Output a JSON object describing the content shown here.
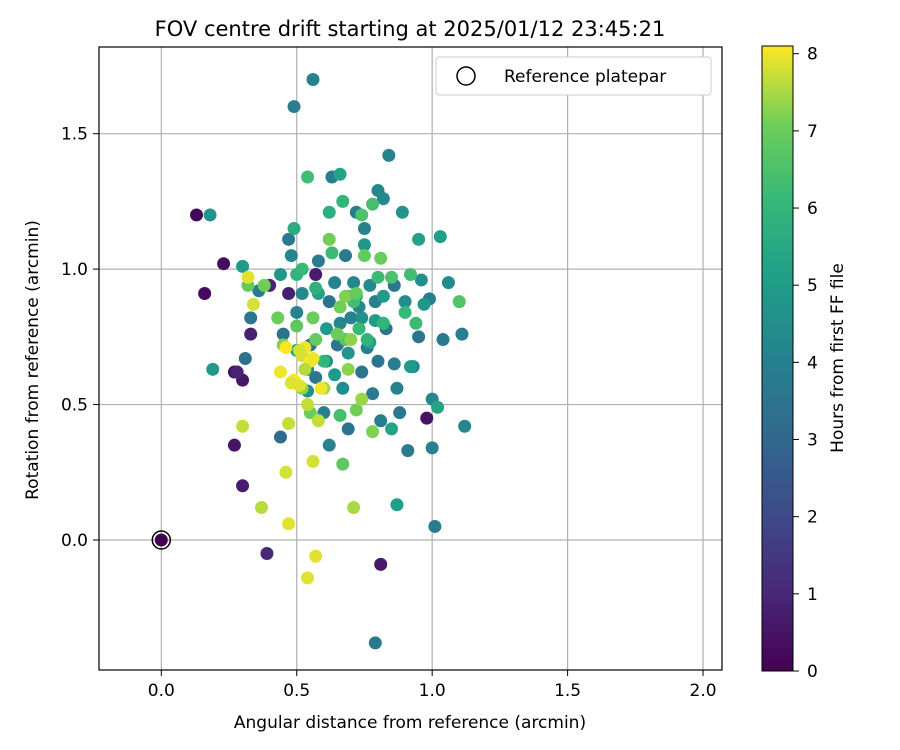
{
  "chart_data": {
    "type": "scatter",
    "title": "FOV centre drift starting at 2025/01/12 23:45:21",
    "xlabel": "Angular distance from reference (arcmin)",
    "ylabel": "Rotation from reference (arcmin)",
    "xlim": [
      -0.23,
      2.07
    ],
    "ylim": [
      -0.48,
      1.82
    ],
    "xticks": [
      0.0,
      0.5,
      1.0,
      1.5,
      2.0
    ],
    "xtick_labels": [
      "0.0",
      "0.5",
      "1.0",
      "1.5",
      "2.0"
    ],
    "yticks": [
      0.0,
      0.5,
      1.0,
      1.5
    ],
    "ytick_labels": [
      "0.0",
      "0.5",
      "1.0",
      "1.5"
    ],
    "grid": true,
    "colorbar": {
      "label": "Hours from first FF file",
      "min": 0,
      "max": 8.1,
      "ticks": [
        0,
        1,
        2,
        3,
        4,
        5,
        6,
        7,
        8
      ],
      "tick_labels": [
        "0",
        "1",
        "2",
        "3",
        "4",
        "5",
        "6",
        "7",
        "8"
      ],
      "colormap": "viridis"
    },
    "legend": {
      "placement": "top-right",
      "entries": [
        {
          "label": "Reference platepar",
          "marker": "open-circle",
          "x": 0.0,
          "y": 0.0
        }
      ]
    },
    "points": [
      [
        0.0,
        0.0,
        0.0
      ],
      [
        0.13,
        1.2,
        0.1
      ],
      [
        0.16,
        0.91,
        0.2
      ],
      [
        0.23,
        1.02,
        0.3
      ],
      [
        0.27,
        0.62,
        0.4
      ],
      [
        0.27,
        0.35,
        0.5
      ],
      [
        0.3,
        0.59,
        0.6
      ],
      [
        0.3,
        0.2,
        0.7
      ],
      [
        0.33,
        0.76,
        0.8
      ],
      [
        0.4,
        0.94,
        0.9
      ],
      [
        0.39,
        -0.05,
        1.0
      ],
      [
        0.47,
        0.91,
        0.8
      ],
      [
        0.57,
        0.98,
        0.7
      ],
      [
        0.81,
        -0.09,
        0.6
      ],
      [
        0.98,
        0.45,
        0.5
      ],
      [
        0.28,
        0.62,
        0.9
      ],
      [
        0.31,
        0.67,
        3.4
      ],
      [
        0.33,
        0.82,
        3.6
      ],
      [
        0.36,
        0.92,
        3.8
      ],
      [
        0.44,
        0.38,
        3.2
      ],
      [
        0.45,
        0.76,
        3.5
      ],
      [
        0.47,
        1.11,
        3.7
      ],
      [
        0.48,
        1.05,
        4.2
      ],
      [
        0.49,
        1.6,
        3.9
      ],
      [
        0.5,
        0.84,
        4.0
      ],
      [
        0.52,
        0.91,
        4.3
      ],
      [
        0.55,
        0.72,
        3.4
      ],
      [
        0.56,
        1.7,
        4.1
      ],
      [
        0.57,
        0.6,
        3.6
      ],
      [
        0.58,
        1.03,
        3.8
      ],
      [
        0.6,
        0.47,
        4.0
      ],
      [
        0.61,
        0.66,
        4.4
      ],
      [
        0.62,
        0.88,
        3.5
      ],
      [
        0.63,
        1.34,
        3.9
      ],
      [
        0.64,
        0.95,
        4.1
      ],
      [
        0.65,
        0.72,
        3.6
      ],
      [
        0.66,
        0.8,
        4.2
      ],
      [
        0.68,
        1.05,
        3.7
      ],
      [
        0.69,
        0.41,
        3.5
      ],
      [
        0.7,
        0.82,
        4.0
      ],
      [
        0.72,
        1.21,
        3.8
      ],
      [
        0.73,
        0.86,
        4.3
      ],
      [
        0.74,
        0.62,
        3.6
      ],
      [
        0.75,
        1.15,
        4.1
      ],
      [
        0.76,
        0.71,
        3.9
      ],
      [
        0.77,
        0.94,
        4.4
      ],
      [
        0.78,
        0.54,
        3.7
      ],
      [
        0.79,
        0.88,
        4.0
      ],
      [
        0.8,
        0.66,
        3.5
      ],
      [
        0.8,
        1.29,
        4.2
      ],
      [
        0.81,
        0.44,
        3.8
      ],
      [
        0.82,
        1.26,
        4.3
      ],
      [
        0.83,
        0.78,
        3.6
      ],
      [
        0.84,
        1.42,
        4.0
      ],
      [
        0.86,
        0.65,
        3.9
      ],
      [
        0.87,
        0.56,
        4.1
      ],
      [
        0.88,
        0.47,
        3.7
      ],
      [
        0.9,
        0.88,
        4.4
      ],
      [
        0.91,
        0.33,
        3.8
      ],
      [
        0.93,
        0.64,
        4.2
      ],
      [
        0.95,
        0.75,
        3.6
      ],
      [
        0.96,
        0.96,
        4.5
      ],
      [
        0.99,
        0.89,
        3.9
      ],
      [
        1.0,
        0.52,
        4.3
      ],
      [
        1.0,
        0.34,
        4.1
      ],
      [
        1.01,
        0.05,
        3.8
      ],
      [
        1.04,
        0.74,
        3.7
      ],
      [
        1.06,
        0.95,
        4.4
      ],
      [
        1.11,
        0.76,
        3.9
      ],
      [
        1.12,
        0.42,
        4.2
      ],
      [
        0.79,
        -0.38,
        3.7
      ],
      [
        0.62,
        0.35,
        4.0
      ],
      [
        0.71,
        0.95,
        4.3
      ],
      [
        0.54,
        0.63,
        4.1
      ],
      [
        0.67,
        0.56,
        4.4
      ],
      [
        0.86,
        0.94,
        3.6
      ],
      [
        0.18,
        1.2,
        4.7
      ],
      [
        0.19,
        0.63,
        4.9
      ],
      [
        0.3,
        1.01,
        5.0
      ],
      [
        0.44,
        0.98,
        4.8
      ],
      [
        0.5,
        0.7,
        5.1
      ],
      [
        0.54,
        0.55,
        4.6
      ],
      [
        0.58,
        0.91,
        5.2
      ],
      [
        0.61,
        0.78,
        4.9
      ],
      [
        0.64,
        0.61,
        5.0
      ],
      [
        0.66,
        1.35,
        5.3
      ],
      [
        0.69,
        0.69,
        4.7
      ],
      [
        0.72,
        0.9,
        5.1
      ],
      [
        0.75,
        1.09,
        4.8
      ],
      [
        0.77,
        0.73,
        5.2
      ],
      [
        0.79,
        0.81,
        5.0
      ],
      [
        0.82,
        0.9,
        4.9
      ],
      [
        0.85,
        0.41,
        5.3
      ],
      [
        0.87,
        0.13,
        5.1
      ],
      [
        0.89,
        1.21,
        4.7
      ],
      [
        0.92,
        0.64,
        5.0
      ],
      [
        0.95,
        1.11,
        5.2
      ],
      [
        0.97,
        0.87,
        4.8
      ],
      [
        1.03,
        1.12,
        5.1
      ],
      [
        1.02,
        0.49,
        5.3
      ],
      [
        0.74,
        0.82,
        4.6
      ],
      [
        0.49,
        1.15,
        5.6
      ],
      [
        0.5,
        0.98,
        5.9
      ],
      [
        0.52,
        1.0,
        6.1
      ],
      [
        0.54,
        1.34,
        6.3
      ],
      [
        0.57,
        0.93,
        5.8
      ],
      [
        0.6,
        0.66,
        6.0
      ],
      [
        0.62,
        1.21,
        5.7
      ],
      [
        0.63,
        1.06,
        6.2
      ],
      [
        0.66,
        0.46,
        6.4
      ],
      [
        0.67,
        1.25,
        6.0
      ],
      [
        0.69,
        0.9,
        5.8
      ],
      [
        0.71,
        0.88,
        6.3
      ],
      [
        0.73,
        0.78,
        6.1
      ],
      [
        0.76,
        0.74,
        5.9
      ],
      [
        0.78,
        1.24,
        6.4
      ],
      [
        0.8,
        0.97,
        6.2
      ],
      [
        0.82,
        0.8,
        6.0
      ],
      [
        0.85,
        0.97,
        6.5
      ],
      [
        0.9,
        0.84,
        6.1
      ],
      [
        0.92,
        0.98,
        6.3
      ],
      [
        0.94,
        0.8,
        6.2
      ],
      [
        1.1,
        0.88,
        6.6
      ],
      [
        0.74,
        1.2,
        6.5
      ],
      [
        0.68,
        0.74,
        6.7
      ],
      [
        0.32,
        0.94,
        6.9
      ],
      [
        0.38,
        0.94,
        7.1
      ],
      [
        0.43,
        0.82,
        7.0
      ],
      [
        0.45,
        0.72,
        7.2
      ],
      [
        0.5,
        0.79,
        6.8
      ],
      [
        0.52,
        0.56,
        7.3
      ],
      [
        0.55,
        0.47,
        7.0
      ],
      [
        0.57,
        0.74,
        6.9
      ],
      [
        0.6,
        0.56,
        7.4
      ],
      [
        0.62,
        1.11,
        7.1
      ],
      [
        0.65,
        0.76,
        7.0
      ],
      [
        0.67,
        0.28,
        6.8
      ],
      [
        0.68,
        0.9,
        7.2
      ],
      [
        0.7,
        0.74,
        7.3
      ],
      [
        0.71,
        0.12,
        7.5
      ],
      [
        0.72,
        0.48,
        7.1
      ],
      [
        0.74,
        0.52,
        7.4
      ],
      [
        0.75,
        1.05,
        6.9
      ],
      [
        0.78,
        0.4,
        7.2
      ],
      [
        0.81,
        1.04,
        7.0
      ],
      [
        0.66,
        0.86,
        7.1
      ],
      [
        0.72,
        0.91,
        6.9
      ],
      [
        0.69,
        0.63,
        7.3
      ],
      [
        0.56,
        0.82,
        7.0
      ],
      [
        0.3,
        0.42,
        7.7
      ],
      [
        0.32,
        0.97,
        7.9
      ],
      [
        0.34,
        0.87,
        7.8
      ],
      [
        0.37,
        0.12,
        7.6
      ],
      [
        0.44,
        0.62,
        8.0
      ],
      [
        0.46,
        0.25,
        7.8
      ],
      [
        0.47,
        0.06,
        7.9
      ],
      [
        0.47,
        0.43,
        7.7
      ],
      [
        0.49,
        0.59,
        8.1
      ],
      [
        0.51,
        0.57,
        7.9
      ],
      [
        0.52,
        0.68,
        7.8
      ],
      [
        0.53,
        0.71,
        8.0
      ],
      [
        0.54,
        0.5,
        7.7
      ],
      [
        0.54,
        -0.14,
        7.9
      ],
      [
        0.55,
        0.66,
        8.1
      ],
      [
        0.56,
        0.29,
        7.8
      ],
      [
        0.56,
        0.67,
        8.0
      ],
      [
        0.57,
        -0.06,
        7.9
      ],
      [
        0.58,
        0.44,
        7.7
      ],
      [
        0.48,
        0.58,
        7.9
      ],
      [
        0.59,
        0.56,
        8.0
      ],
      [
        0.51,
        0.7,
        7.8
      ],
      [
        0.46,
        0.71,
        8.1
      ],
      [
        0.53,
        0.63,
        7.6
      ]
    ]
  }
}
